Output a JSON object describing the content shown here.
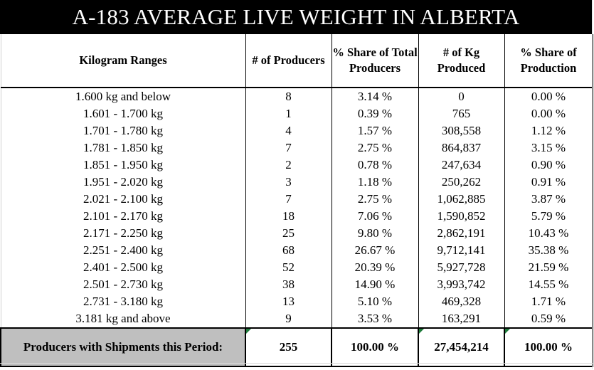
{
  "title": "A-183 AVERAGE LIVE WEIGHT IN ALBERTA",
  "headers": {
    "range": "Kilogram Ranges",
    "producers": "# of Producers",
    "share_producers": "% Share of Total Producers",
    "kg": "# of Kg Produced",
    "share_production": "% Share of Production"
  },
  "rows": [
    {
      "range": "1.600 kg and below",
      "producers": "8",
      "share_producers": "3.14 %",
      "kg": "0",
      "share_production": "0.00 %"
    },
    {
      "range": "1.601 - 1.700 kg",
      "producers": "1",
      "share_producers": "0.39 %",
      "kg": "765",
      "share_production": "0.00 %"
    },
    {
      "range": "1.701 - 1.780 kg",
      "producers": "4",
      "share_producers": "1.57 %",
      "kg": "308,558",
      "share_production": "1.12 %"
    },
    {
      "range": "1.781 - 1.850 kg",
      "producers": "7",
      "share_producers": "2.75 %",
      "kg": "864,837",
      "share_production": "3.15 %"
    },
    {
      "range": "1.851 - 1.950 kg",
      "producers": "2",
      "share_producers": "0.78 %",
      "kg": "247,634",
      "share_production": "0.90 %"
    },
    {
      "range": "1.951 - 2.020 kg",
      "producers": "3",
      "share_producers": "1.18 %",
      "kg": "250,262",
      "share_production": "0.91 %"
    },
    {
      "range": "2.021 - 2.100 kg",
      "producers": "7",
      "share_producers": "2.75 %",
      "kg": "1,062,885",
      "share_production": "3.87 %"
    },
    {
      "range": "2.101 - 2.170 kg",
      "producers": "18",
      "share_producers": "7.06 %",
      "kg": "1,590,852",
      "share_production": "5.79 %"
    },
    {
      "range": "2.171 - 2.250 kg",
      "producers": "25",
      "share_producers": "9.80 %",
      "kg": "2,862,191",
      "share_production": "10.43 %"
    },
    {
      "range": "2.251 - 2.400 kg",
      "producers": "68",
      "share_producers": "26.67 %",
      "kg": "9,712,141",
      "share_production": "35.38 %"
    },
    {
      "range": "2.401 - 2.500 kg",
      "producers": "52",
      "share_producers": "20.39 %",
      "kg": "5,927,728",
      "share_production": "21.59 %"
    },
    {
      "range": "2.501 - 2.730 kg",
      "producers": "38",
      "share_producers": "14.90 %",
      "kg": "3,993,742",
      "share_production": "14.55 %"
    },
    {
      "range": "2.731 - 3.180 kg",
      "producers": "13",
      "share_producers": "5.10 %",
      "kg": "469,328",
      "share_production": "1.71 %"
    },
    {
      "range": "3.181 kg and above",
      "producers": "9",
      "share_producers": "3.53 %",
      "kg": "163,291",
      "share_production": "0.59 %"
    }
  ],
  "totals": {
    "label": "Producers with Shipments this Period:",
    "producers": "255",
    "share_producers": "100.00 %",
    "kg": "27,454,214",
    "share_production": "100.00 %"
  },
  "colors": {
    "title_bg": "#000000",
    "title_text": "#ffffff",
    "total_label_bg": "#bfbfbf",
    "cell_marker": "#1e7a3a"
  }
}
